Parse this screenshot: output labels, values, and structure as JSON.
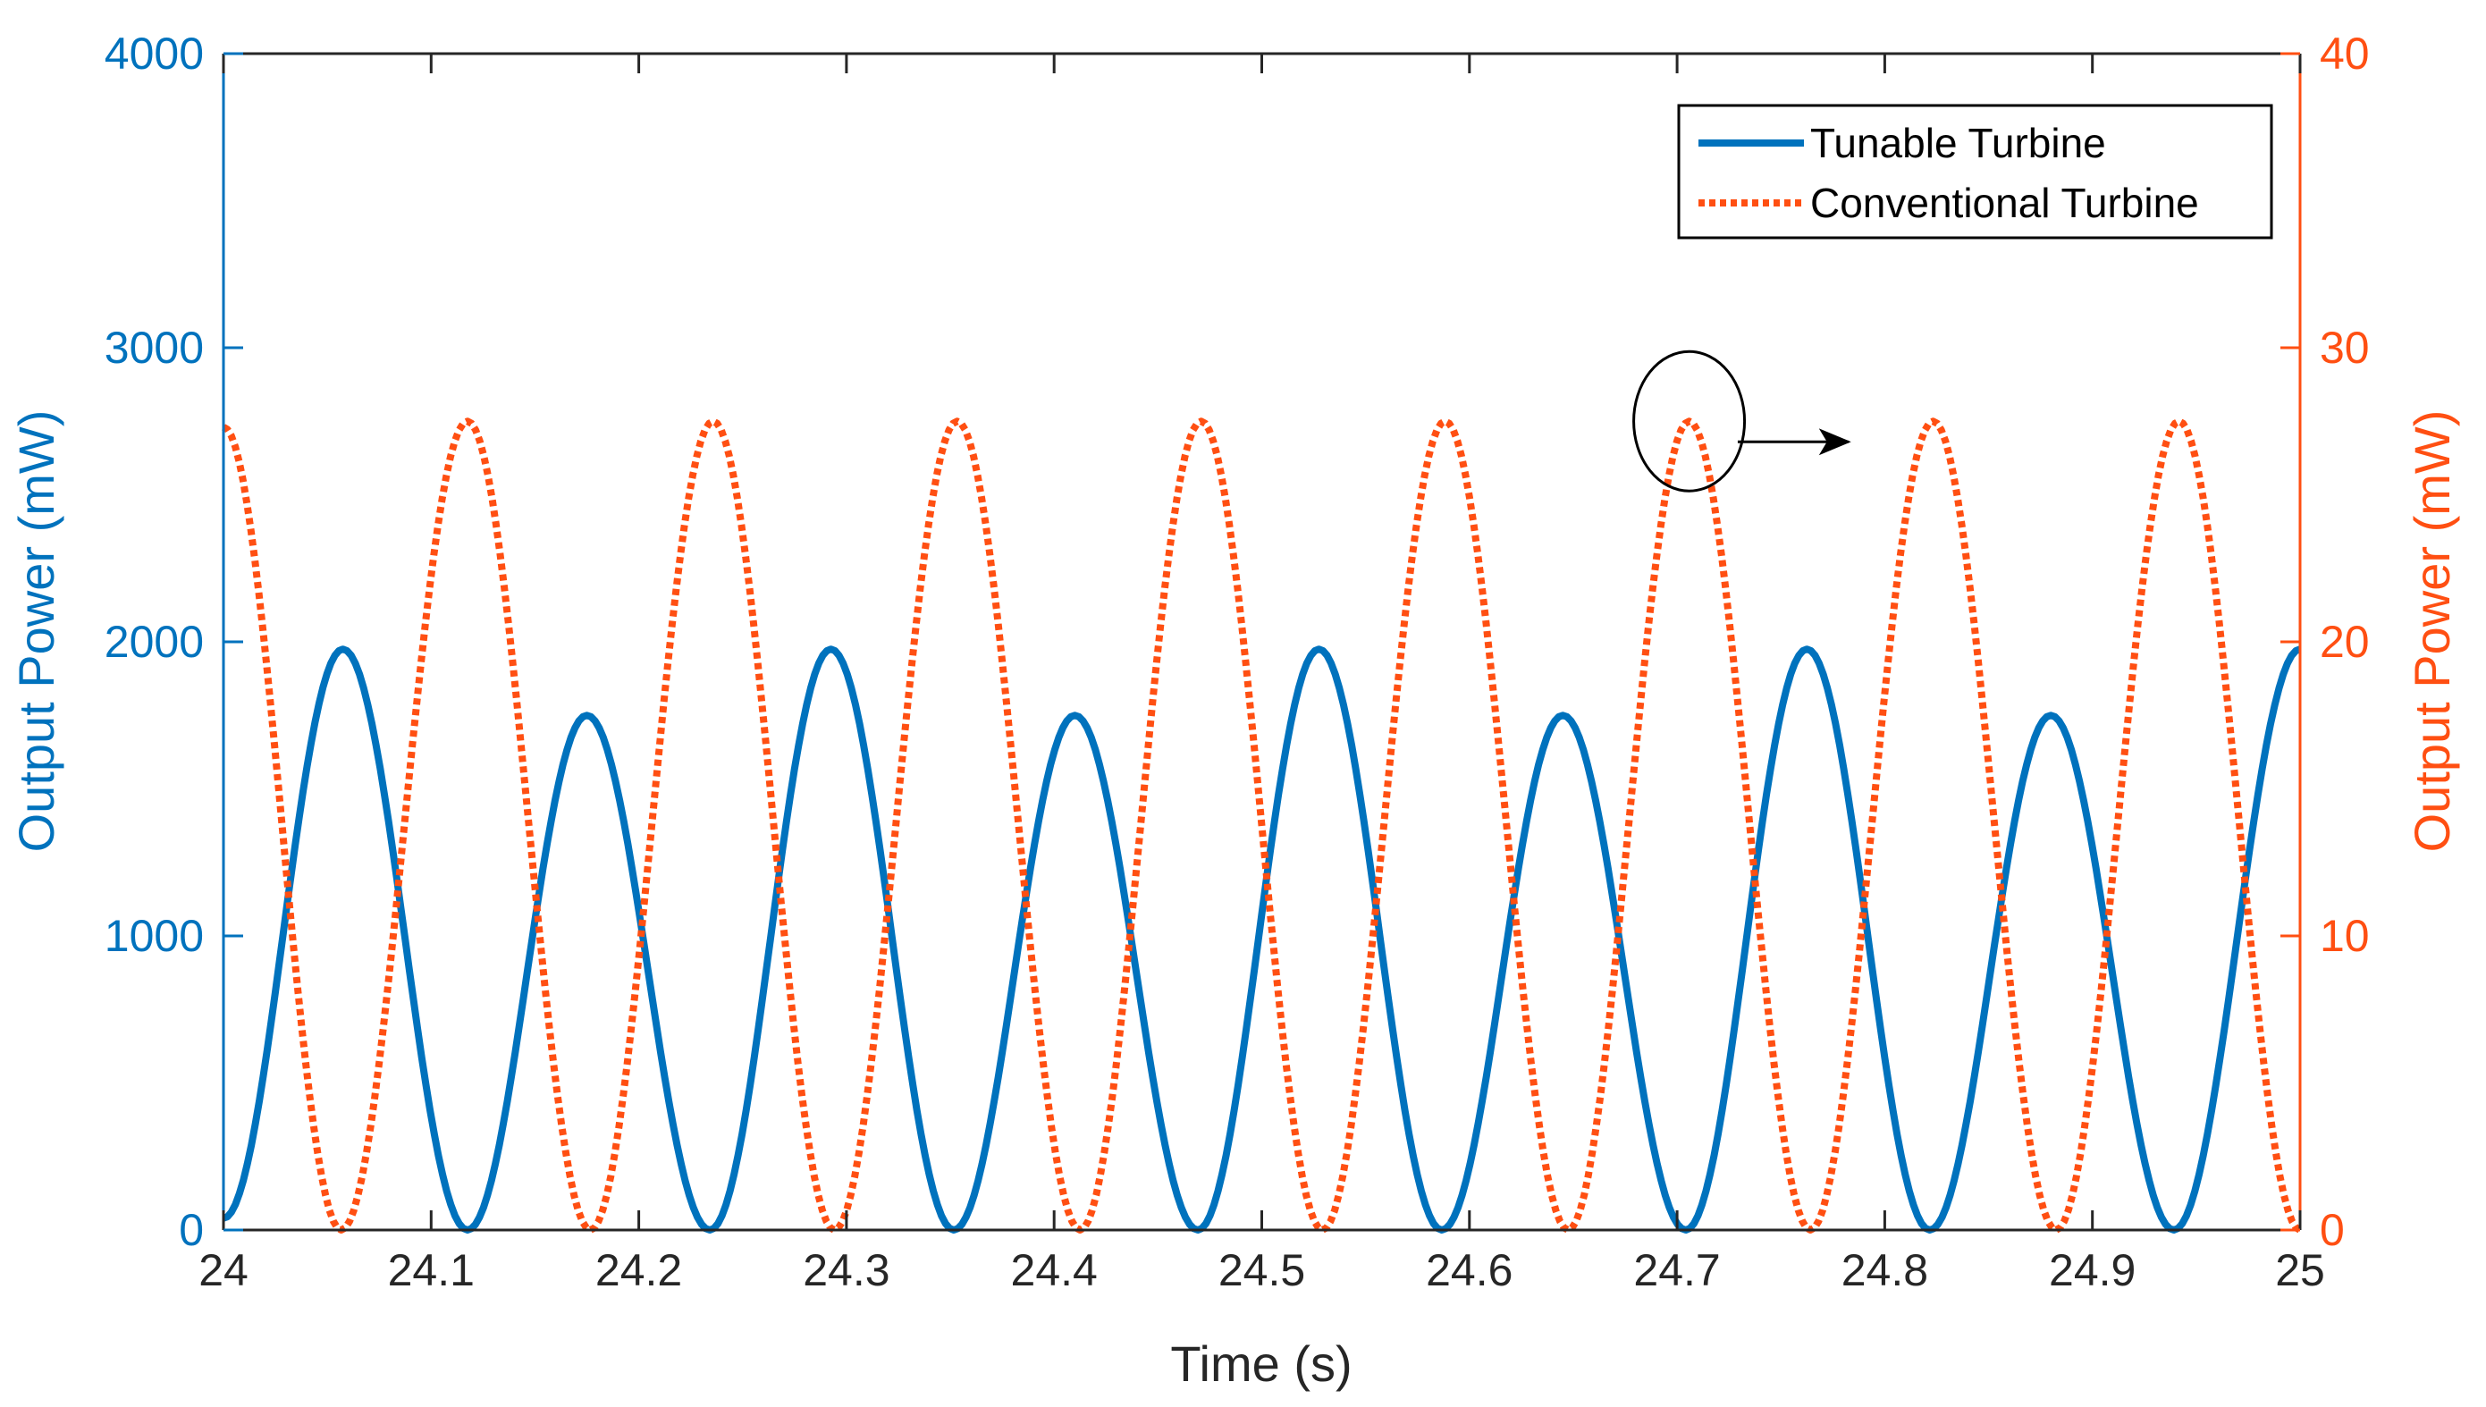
{
  "chart_data": {
    "type": "line",
    "title": "",
    "xlabel": "Time (s)",
    "ylabel_left": "Output Power (mW)",
    "ylabel_right": "Output Power (mW)",
    "xlim": [
      24,
      25
    ],
    "ylim_left": [
      0,
      4000
    ],
    "ylim_right": [
      0,
      40
    ],
    "x_ticks": [
      "24",
      "24.1",
      "24.2",
      "24.3",
      "24.4",
      "24.5",
      "24.6",
      "24.7",
      "24.8",
      "24.9",
      "25"
    ],
    "y_ticks_left": [
      "0",
      "1000",
      "2000",
      "3000",
      "4000"
    ],
    "y_ticks_right": [
      "0",
      "10",
      "20",
      "30",
      "40"
    ],
    "grid": false,
    "legend_position": "top-right",
    "series": [
      {
        "name": "Tunable Turbine",
        "axis": "left",
        "color": "#0072BD",
        "style": "solid",
        "x": [
          24,
          24.0575,
          24.1175,
          24.175,
          24.2342,
          24.2925,
          24.3517,
          24.41,
          24.4692,
          24.5275,
          24.5867,
          24.645,
          24.7042,
          24.7625,
          24.8217,
          24.88,
          24.9392,
          25
        ],
        "y": [
          40,
          1975,
          0,
          1750,
          0,
          1975,
          0,
          1750,
          0,
          1975,
          0,
          1750,
          0,
          1975,
          0,
          1750,
          0,
          1975
        ]
      },
      {
        "name": "Conventional Turbine",
        "axis": "right",
        "color": "#FF4F12",
        "style": "dotted",
        "x": [
          24,
          24.0567,
          24.1175,
          24.1767,
          24.2358,
          24.2942,
          24.3533,
          24.4125,
          24.4708,
          24.5292,
          24.5883,
          24.6475,
          24.7058,
          24.7642,
          24.8233,
          24.8825,
          24.9417,
          25
        ],
        "y": [
          27.3,
          0,
          27.5,
          0,
          27.5,
          0,
          27.5,
          0,
          27.5,
          0,
          27.5,
          0,
          27.5,
          0,
          27.5,
          0,
          27.5,
          0
        ]
      }
    ],
    "annotations": [
      {
        "type": "ellipse",
        "around": {
          "x": 24.7058,
          "y_right": 27.5
        }
      },
      {
        "type": "arrow",
        "from": {
          "x": 24.7292,
          "y_right": 26.8
        },
        "to": {
          "x": 24.7825,
          "y_right": 26.8
        }
      }
    ]
  }
}
